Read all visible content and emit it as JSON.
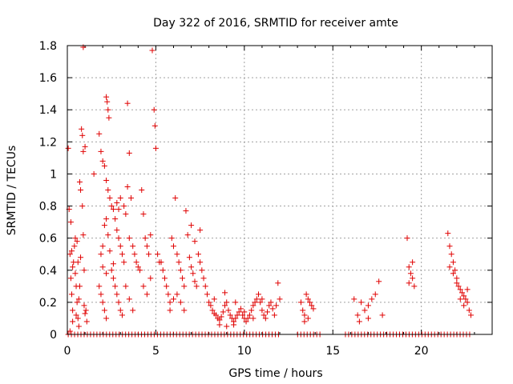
{
  "chart_data": {
    "type": "scatter",
    "title": "Day 322 of 2016, SRMTID for receiver amte",
    "xlabel": "GPS time / hours",
    "ylabel": "SRMTID / TECUs",
    "xlim": [
      0,
      24
    ],
    "ylim": [
      0,
      1.8
    ],
    "xticks": [
      0,
      5,
      10,
      15,
      20
    ],
    "yticks": [
      0,
      0.2,
      0.4,
      0.6,
      0.8,
      1,
      1.2,
      1.4,
      1.6,
      1.8
    ],
    "xtick_labels": [
      "0",
      "5",
      "10",
      "15",
      "20"
    ],
    "ytick_labels": [
      "0",
      "0.2",
      "0.4",
      "0.6",
      "0.8",
      "1",
      "1.2",
      "1.4",
      "1.6",
      "1.8"
    ],
    "grid": true,
    "marker": "+",
    "color": "#e00000",
    "series": [
      {
        "name": "SRMTID",
        "points": [
          [
            0.05,
            1.16
          ],
          [
            0.1,
            0.78
          ],
          [
            0.15,
            0.5
          ],
          [
            0.2,
            0.35
          ],
          [
            0.25,
            0.25
          ],
          [
            0.3,
            0.15
          ],
          [
            0.35,
            0.45
          ],
          [
            0.4,
            0.55
          ],
          [
            0.45,
            0.6
          ],
          [
            0.5,
            0.3
          ],
          [
            0.55,
            0.2
          ],
          [
            0.6,
            0.1
          ],
          [
            0.65,
            0.05
          ],
          [
            0.7,
            0.95
          ],
          [
            0.75,
            0.9
          ],
          [
            0.8,
            1.28
          ],
          [
            0.85,
            1.24
          ],
          [
            0.9,
            1.14
          ],
          [
            0.95,
            0.4
          ],
          [
            1.0,
            1.17
          ],
          [
            1.05,
            0.15
          ],
          [
            1.1,
            0.08
          ],
          [
            0.2,
            0.7
          ],
          [
            0.3,
            0.42
          ],
          [
            0.45,
            0.38
          ],
          [
            0.6,
            0.45
          ],
          [
            0.75,
            0.48
          ],
          [
            0.85,
            0.8
          ],
          [
            0.9,
            0.62
          ],
          [
            0.65,
            0.22
          ],
          [
            0.5,
            0.12
          ],
          [
            0.3,
            0.08
          ],
          [
            0.15,
            0.02
          ],
          [
            0.25,
            0.52
          ],
          [
            0.55,
            0.58
          ],
          [
            0.7,
            0.3
          ],
          [
            0.95,
            0.18
          ],
          [
            1.0,
            0.13
          ],
          [
            0.9,
            1.79
          ],
          [
            1.5,
            1.0
          ],
          [
            1.8,
            1.25
          ],
          [
            1.9,
            1.14
          ],
          [
            2.0,
            1.08
          ],
          [
            2.1,
            1.05
          ],
          [
            2.2,
            1.48
          ],
          [
            2.25,
            1.45
          ],
          [
            2.3,
            1.4
          ],
          [
            2.35,
            1.35
          ],
          [
            2.2,
            0.96
          ],
          [
            2.3,
            0.9
          ],
          [
            2.4,
            0.85
          ],
          [
            2.5,
            0.8
          ],
          [
            2.6,
            0.78
          ],
          [
            2.7,
            0.72
          ],
          [
            2.8,
            0.65
          ],
          [
            2.9,
            0.6
          ],
          [
            3.0,
            0.55
          ],
          [
            3.1,
            0.5
          ],
          [
            3.2,
            0.45
          ],
          [
            1.9,
            0.5
          ],
          [
            2.0,
            0.55
          ],
          [
            2.1,
            0.68
          ],
          [
            2.2,
            0.72
          ],
          [
            2.3,
            0.62
          ],
          [
            2.4,
            0.52
          ],
          [
            2.5,
            0.4
          ],
          [
            2.6,
            0.35
          ],
          [
            2.7,
            0.3
          ],
          [
            2.8,
            0.25
          ],
          [
            2.9,
            0.2
          ],
          [
            3.0,
            0.15
          ],
          [
            3.1,
            0.12
          ],
          [
            1.8,
            0.3
          ],
          [
            1.9,
            0.25
          ],
          [
            2.0,
            0.2
          ],
          [
            2.1,
            0.15
          ],
          [
            2.2,
            0.1
          ],
          [
            3.2,
            0.8
          ],
          [
            3.3,
            0.75
          ],
          [
            3.0,
            0.85
          ],
          [
            2.9,
            0.78
          ],
          [
            2.8,
            0.82
          ],
          [
            3.4,
            1.44
          ],
          [
            3.5,
            1.13
          ],
          [
            3.4,
            0.92
          ],
          [
            3.6,
            0.85
          ],
          [
            3.5,
            0.6
          ],
          [
            3.7,
            0.55
          ],
          [
            3.8,
            0.5
          ],
          [
            3.9,
            0.45
          ],
          [
            4.0,
            0.42
          ],
          [
            4.1,
            0.4
          ],
          [
            4.2,
            0.9
          ],
          [
            4.3,
            0.75
          ],
          [
            4.4,
            0.6
          ],
          [
            4.5,
            0.55
          ],
          [
            4.6,
            0.5
          ],
          [
            4.7,
            0.62
          ],
          [
            4.8,
            1.77
          ],
          [
            4.9,
            1.4
          ],
          [
            4.95,
            1.3
          ],
          [
            5.0,
            1.16
          ],
          [
            5.1,
            0.5
          ],
          [
            5.2,
            0.45
          ],
          [
            4.3,
            0.3
          ],
          [
            4.5,
            0.25
          ],
          [
            4.7,
            0.35
          ],
          [
            3.3,
            0.3
          ],
          [
            3.5,
            0.22
          ],
          [
            3.7,
            0.15
          ],
          [
            2.0,
            0.42
          ],
          [
            2.2,
            0.38
          ],
          [
            2.6,
            0.44
          ],
          [
            5.3,
            0.45
          ],
          [
            5.4,
            0.4
          ],
          [
            5.5,
            0.35
          ],
          [
            5.6,
            0.3
          ],
          [
            5.7,
            0.25
          ],
          [
            5.8,
            0.2
          ],
          [
            5.9,
            0.6
          ],
          [
            6.0,
            0.55
          ],
          [
            6.1,
            0.85
          ],
          [
            6.2,
            0.5
          ],
          [
            6.3,
            0.45
          ],
          [
            6.4,
            0.4
          ],
          [
            6.5,
            0.35
          ],
          [
            6.6,
            0.3
          ],
          [
            6.7,
            0.77
          ],
          [
            6.8,
            0.62
          ],
          [
            6.9,
            0.48
          ],
          [
            7.0,
            0.42
          ],
          [
            7.1,
            0.38
          ],
          [
            7.2,
            0.33
          ],
          [
            7.3,
            0.3
          ],
          [
            7.4,
            0.5
          ],
          [
            7.5,
            0.45
          ],
          [
            7.6,
            0.4
          ],
          [
            7.7,
            0.35
          ],
          [
            7.8,
            0.3
          ],
          [
            7.9,
            0.25
          ],
          [
            6.2,
            0.25
          ],
          [
            6.4,
            0.2
          ],
          [
            6.6,
            0.15
          ],
          [
            6.0,
            0.22
          ],
          [
            5.8,
            0.15
          ],
          [
            7.0,
            0.68
          ],
          [
            7.2,
            0.58
          ],
          [
            7.5,
            0.65
          ],
          [
            8.0,
            0.2
          ],
          [
            8.1,
            0.18
          ],
          [
            8.2,
            0.15
          ],
          [
            8.3,
            0.13
          ],
          [
            8.4,
            0.12
          ],
          [
            8.5,
            0.1
          ],
          [
            8.6,
            0.09
          ],
          [
            8.7,
            0.11
          ],
          [
            8.8,
            0.14
          ],
          [
            8.9,
            0.18
          ],
          [
            9.0,
            0.2
          ],
          [
            9.1,
            0.15
          ],
          [
            9.2,
            0.12
          ],
          [
            9.3,
            0.1
          ],
          [
            9.4,
            0.08
          ],
          [
            9.5,
            0.1
          ],
          [
            9.6,
            0.12
          ],
          [
            9.7,
            0.14
          ],
          [
            9.8,
            0.16
          ],
          [
            9.9,
            0.12
          ],
          [
            10.0,
            0.1
          ],
          [
            10.1,
            0.08
          ],
          [
            10.2,
            0.1
          ],
          [
            10.3,
            0.12
          ],
          [
            10.4,
            0.15
          ],
          [
            10.5,
            0.18
          ],
          [
            10.6,
            0.2
          ],
          [
            10.7,
            0.22
          ],
          [
            10.8,
            0.25
          ],
          [
            10.9,
            0.2
          ],
          [
            11.0,
            0.15
          ],
          [
            11.1,
            0.12
          ],
          [
            11.2,
            0.1
          ],
          [
            11.3,
            0.14
          ],
          [
            11.4,
            0.18
          ],
          [
            11.5,
            0.2
          ],
          [
            11.6,
            0.16
          ],
          [
            11.7,
            0.12
          ],
          [
            11.8,
            0.18
          ],
          [
            11.9,
            0.32
          ],
          [
            12.0,
            0.22
          ],
          [
            8.3,
            0.22
          ],
          [
            8.6,
            0.06
          ],
          [
            9.0,
            0.05
          ],
          [
            9.4,
            0.06
          ],
          [
            10.0,
            0.14
          ],
          [
            10.5,
            0.1
          ],
          [
            11.0,
            0.22
          ],
          [
            8.9,
            0.26
          ],
          [
            9.5,
            0.2
          ],
          [
            13.2,
            0.2
          ],
          [
            13.3,
            0.15
          ],
          [
            13.4,
            0.12
          ],
          [
            13.5,
            0.25
          ],
          [
            13.6,
            0.22
          ],
          [
            13.7,
            0.2
          ],
          [
            13.8,
            0.18
          ],
          [
            13.9,
            0.16
          ],
          [
            13.4,
            0.08
          ],
          [
            13.6,
            0.1
          ],
          [
            16.2,
            0.22
          ],
          [
            16.4,
            0.12
          ],
          [
            16.5,
            0.08
          ],
          [
            16.6,
            0.2
          ],
          [
            16.8,
            0.15
          ],
          [
            17.0,
            0.18
          ],
          [
            17.2,
            0.22
          ],
          [
            17.4,
            0.25
          ],
          [
            17.6,
            0.33
          ],
          [
            17.8,
            0.12
          ],
          [
            17.0,
            0.1
          ],
          [
            19.2,
            0.6
          ],
          [
            19.3,
            0.42
          ],
          [
            19.4,
            0.38
          ],
          [
            19.5,
            0.35
          ],
          [
            19.6,
            0.3
          ],
          [
            19.3,
            0.32
          ],
          [
            19.5,
            0.45
          ],
          [
            21.5,
            0.63
          ],
          [
            21.6,
            0.55
          ],
          [
            21.7,
            0.5
          ],
          [
            21.8,
            0.45
          ],
          [
            21.9,
            0.4
          ],
          [
            22.0,
            0.35
          ],
          [
            22.1,
            0.3
          ],
          [
            22.2,
            0.28
          ],
          [
            22.3,
            0.26
          ],
          [
            22.4,
            0.24
          ],
          [
            22.5,
            0.22
          ],
          [
            22.6,
            0.2
          ],
          [
            22.7,
            0.15
          ],
          [
            22.8,
            0.12
          ],
          [
            21.6,
            0.42
          ],
          [
            21.8,
            0.38
          ],
          [
            22.0,
            0.32
          ],
          [
            22.2,
            0.22
          ],
          [
            22.4,
            0.18
          ],
          [
            22.6,
            0.28
          ]
        ]
      }
    ]
  }
}
